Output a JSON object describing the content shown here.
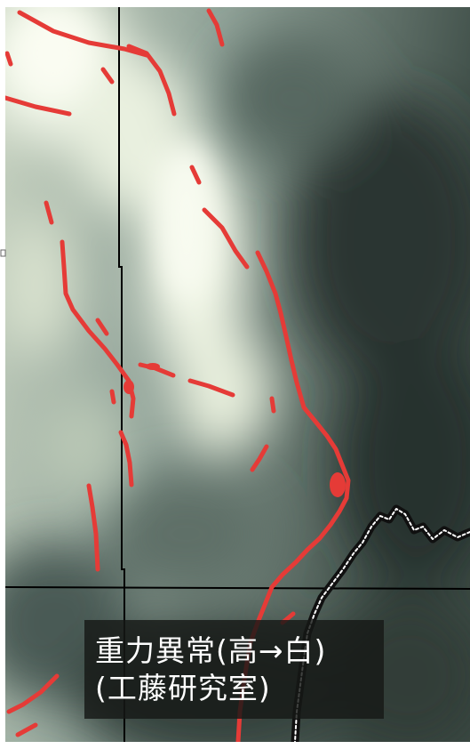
{
  "map": {
    "caption": {
      "line1": "重力異常(高→白)",
      "line2": "(工藤研究室)"
    },
    "colors": {
      "gravity_high": "#f2f7e8",
      "gravity_mid": "#9fb0a5",
      "gravity_low": "#2c3a35",
      "fault_lines": "#e53b37",
      "coastline": "#ffffff",
      "grid_lines": "#000000",
      "border": "#ffffff"
    }
  }
}
